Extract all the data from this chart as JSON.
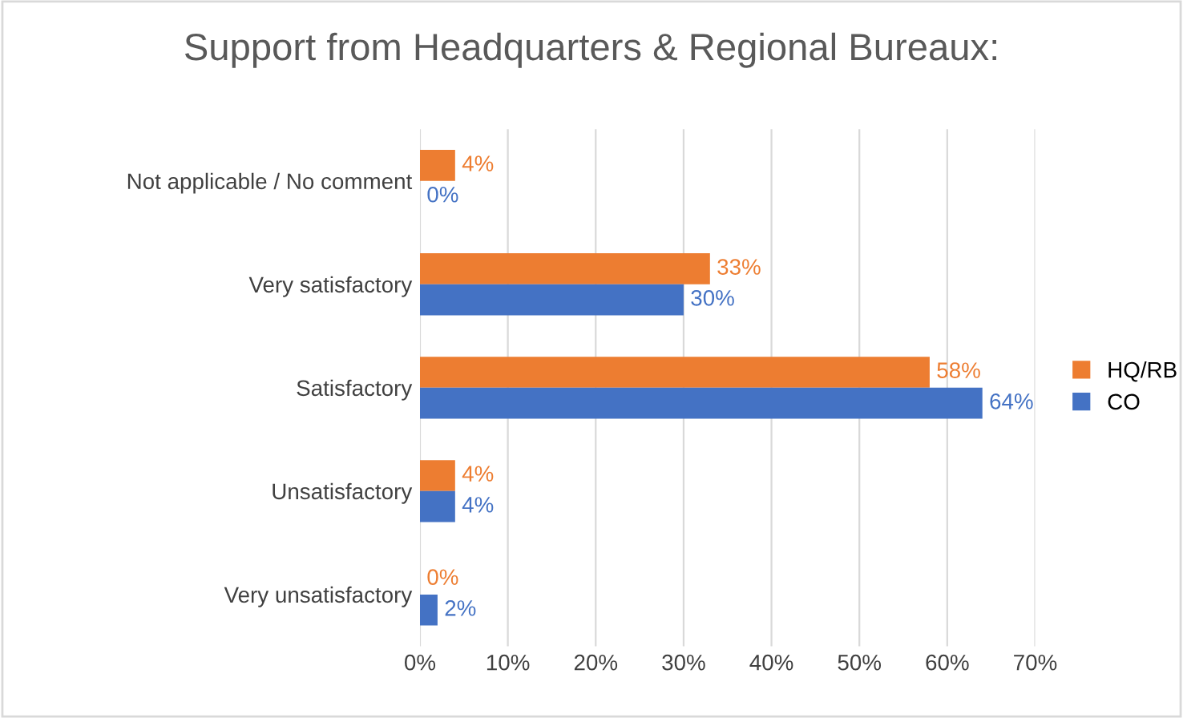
{
  "chart_data": {
    "type": "bar",
    "orientation": "horizontal",
    "title": "Support from Headquarters & Regional Bureaux:",
    "categories": [
      "Not applicable / No comment",
      "Very satisfactory",
      "Satisfactory",
      "Unsatisfactory",
      "Very unsatisfactory"
    ],
    "series": [
      {
        "name": "HQ/RB",
        "color": "#ed7d31",
        "values": [
          4,
          33,
          58,
          4,
          0
        ],
        "value_labels": [
          "4%",
          "33%",
          "58%",
          "4%",
          "0%"
        ]
      },
      {
        "name": "CO",
        "color": "#4472c4",
        "values": [
          0,
          30,
          64,
          4,
          2
        ],
        "value_labels": [
          "0%",
          "30%",
          "64%",
          "4%",
          "2%"
        ]
      }
    ],
    "xlim": [
      0,
      70
    ],
    "xticks": [
      {
        "value": 0,
        "label": "0%"
      },
      {
        "value": 10,
        "label": "10%"
      },
      {
        "value": 20,
        "label": "20%"
      },
      {
        "value": 30,
        "label": "30%"
      },
      {
        "value": 40,
        "label": "40%"
      },
      {
        "value": 50,
        "label": "50%"
      },
      {
        "value": 60,
        "label": "60%"
      },
      {
        "value": 70,
        "label": "70%"
      }
    ],
    "grid": "x",
    "legend": "right"
  }
}
